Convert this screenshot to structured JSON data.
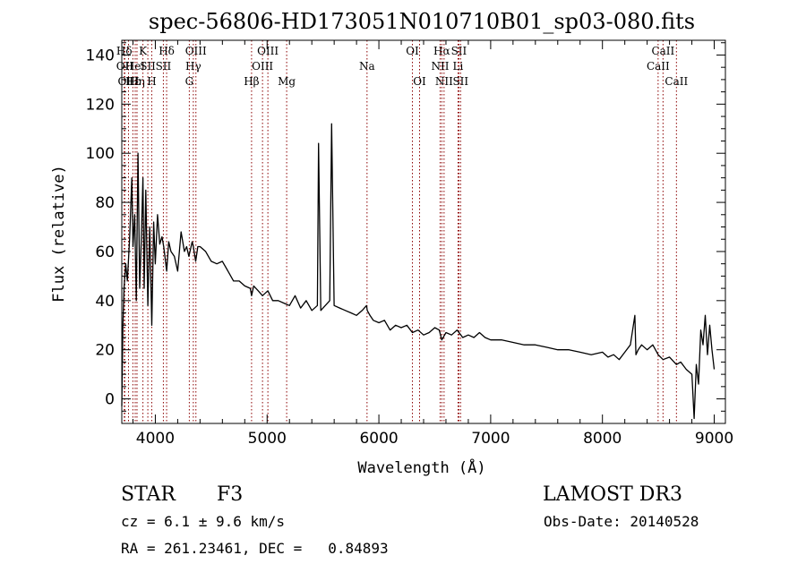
{
  "chart_data": {
    "type": "line",
    "title": "spec-56806-HD173051N010710B01_sp03-080.fits",
    "xlabel": "Wavelength (Å)",
    "ylabel": "Flux (relative)",
    "xlim": [
      3700,
      9100
    ],
    "ylim": [
      -10,
      146
    ],
    "xticks": [
      4000,
      5000,
      6000,
      7000,
      8000,
      9000
    ],
    "yticks": [
      0,
      20,
      40,
      60,
      80,
      100,
      120,
      140
    ],
    "x_minor_step": 200,
    "y_minor_step": 5,
    "line_color": "#000000",
    "marker_color": "#8b0000",
    "series": [
      {
        "name": "flux",
        "x": [
          3700,
          3710,
          3720,
          3735,
          3750,
          3770,
          3790,
          3800,
          3815,
          3830,
          3845,
          3860,
          3875,
          3889,
          3900,
          3915,
          3933,
          3950,
          3968,
          3985,
          4000,
          4020,
          4040,
          4060,
          4075,
          4101,
          4120,
          4140,
          4170,
          4200,
          4230,
          4260,
          4280,
          4300,
          4330,
          4340,
          4361,
          4380,
          4400,
          4450,
          4500,
          4550,
          4600,
          4650,
          4700,
          4750,
          4800,
          4850,
          4861,
          4880,
          4920,
          4959,
          5007,
          5050,
          5100,
          5150,
          5200,
          5250,
          5300,
          5350,
          5400,
          5450,
          5460,
          5480,
          5520,
          5560,
          5577,
          5600,
          5650,
          5700,
          5750,
          5800,
          5850,
          5890,
          5896,
          5920,
          5950,
          6000,
          6050,
          6100,
          6150,
          6200,
          6250,
          6300,
          6350,
          6400,
          6450,
          6500,
          6540,
          6563,
          6600,
          6650,
          6700,
          6750,
          6800,
          6850,
          6900,
          6950,
          7000,
          7100,
          7200,
          7300,
          7400,
          7500,
          7600,
          7700,
          7800,
          7900,
          8000,
          8050,
          8100,
          8150,
          8200,
          8250,
          8290,
          8300,
          8320,
          8350,
          8400,
          8450,
          8498,
          8542,
          8600,
          8662,
          8700,
          8750,
          8800,
          8820,
          8840,
          8860,
          8880,
          8900,
          8920,
          8940,
          8960,
          8980,
          9000
        ],
        "values": [
          -3,
          30,
          45,
          55,
          48,
          65,
          90,
          62,
          75,
          40,
          100,
          45,
          65,
          90,
          45,
          85,
          38,
          70,
          30,
          72,
          55,
          75,
          63,
          66,
          62,
          52,
          64,
          60,
          58,
          52,
          68,
          60,
          62,
          58,
          64,
          62,
          56,
          62,
          62,
          60,
          56,
          55,
          56,
          52,
          48,
          48,
          46,
          45,
          42,
          46,
          44,
          42,
          44,
          40,
          40,
          39,
          38,
          42,
          37,
          40,
          36,
          38,
          104,
          36,
          38,
          40,
          112,
          38,
          37,
          36,
          35,
          34,
          36,
          38,
          36,
          34,
          32,
          31,
          32,
          28,
          30,
          29,
          30,
          27,
          28,
          26,
          27,
          29,
          28,
          24,
          27,
          26,
          28,
          25,
          26,
          25,
          27,
          25,
          24,
          24,
          23,
          22,
          22,
          21,
          20,
          20,
          19,
          18,
          19,
          17,
          18,
          16,
          19,
          22,
          34,
          18,
          20,
          22,
          20,
          22,
          18,
          16,
          17,
          14,
          15,
          12,
          10,
          -8,
          14,
          6,
          28,
          22,
          34,
          18,
          30,
          20,
          12
        ]
      }
    ],
    "lines": [
      {
        "label": "Hδ",
        "wavelength": 3722,
        "row": 1
      },
      {
        "label": "OII",
        "wavelength": 3727,
        "row": 2
      },
      {
        "label": "OIII",
        "wavelength": 3760,
        "row": 3
      },
      {
        "label": "Hε",
        "wavelength": 3799,
        "row": 3
      },
      {
        "label": "HeI",
        "wavelength": 3820,
        "row": 2
      },
      {
        "label": "Hη",
        "wavelength": 3836,
        "row": 3
      },
      {
        "label": "K",
        "wavelength": 3889,
        "row": 1
      },
      {
        "label": "SII",
        "wavelength": 3933,
        "row": 2
      },
      {
        "label": "H",
        "wavelength": 3968,
        "row": 3
      },
      {
        "label": "Hδ",
        "wavelength": 4101,
        "row": 1
      },
      {
        "label": "SII",
        "wavelength": 4072,
        "row": 2
      },
      {
        "label": "OIII",
        "wavelength": 4363,
        "row": 1
      },
      {
        "label": "Hγ",
        "wavelength": 4340,
        "row": 2
      },
      {
        "label": "G",
        "wavelength": 4304,
        "row": 3
      },
      {
        "label": "Hβ",
        "wavelength": 4861,
        "row": 3
      },
      {
        "label": "OIII",
        "wavelength": 5007,
        "row": 1
      },
      {
        "label": "OIII",
        "wavelength": 4959,
        "row": 2
      },
      {
        "label": "Mg",
        "wavelength": 5175,
        "row": 3
      },
      {
        "label": "Na",
        "wavelength": 5894,
        "row": 2
      },
      {
        "label": "OI",
        "wavelength": 6300,
        "row": 1
      },
      {
        "label": "OI",
        "wavelength": 6364,
        "row": 3
      },
      {
        "label": "Hα",
        "wavelength": 6563,
        "row": 1
      },
      {
        "label": "NII",
        "wavelength": 6548,
        "row": 2
      },
      {
        "label": "NII",
        "wavelength": 6583,
        "row": 3
      },
      {
        "label": "SII",
        "wavelength": 6716,
        "row": 1
      },
      {
        "label": "Li",
        "wavelength": 6708,
        "row": 2
      },
      {
        "label": "SII",
        "wavelength": 6731,
        "row": 3
      },
      {
        "label": "CaII",
        "wavelength": 8542,
        "row": 1
      },
      {
        "label": "CaII",
        "wavelength": 8498,
        "row": 2
      },
      {
        "label": "CaII",
        "wavelength": 8662,
        "row": 3
      }
    ]
  },
  "info": {
    "object_class": "STAR",
    "subclass": "F3",
    "survey": "LAMOST DR3",
    "redshift": "cz = 6.1 ± 9.6 km/s",
    "obs_date": "Obs-Date: 20140528",
    "coords": "RA = 261.23461, DEC =   0.84893"
  }
}
